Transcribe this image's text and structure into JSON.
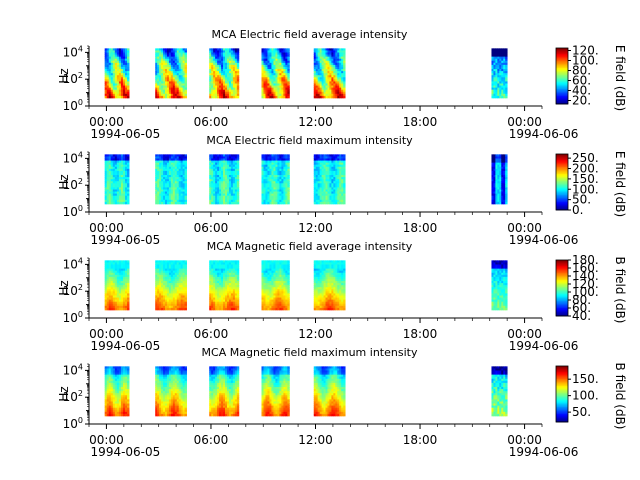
{
  "chart_data": [
    {
      "type": "heatmap",
      "title": "MCA  Electric field average intensity",
      "ylabel": "Hz",
      "y_scale": "log",
      "ylim": [
        1,
        30000
      ],
      "y_ticks": [
        {
          "v": 1,
          "base": "10",
          "exp": "0"
        },
        {
          "v": 100,
          "base": "10",
          "exp": "2"
        },
        {
          "v": 10000,
          "base": "10",
          "exp": "4"
        }
      ],
      "xlim_hours": [
        -1,
        25
      ],
      "x_ticks": [
        {
          "h": 0,
          "label": "00:00",
          "date": "1994-06-05"
        },
        {
          "h": 6,
          "label": "06:00",
          "date": ""
        },
        {
          "h": 12,
          "label": "12:00",
          "date": ""
        },
        {
          "h": 18,
          "label": "18:00",
          "date": ""
        },
        {
          "h": 24,
          "label": "00:00",
          "date": "1994-06-06"
        }
      ],
      "colorbar": {
        "label": "E field (dB)",
        "min": 13,
        "max": 125,
        "ticks": [
          "20.",
          "40.",
          "60.",
          "80.",
          "100.",
          "120."
        ],
        "tick_values": [
          20,
          40,
          60,
          80,
          100,
          120
        ]
      },
      "segments_hours": [
        [
          -0.1,
          1.3
        ],
        [
          2.8,
          4.6
        ],
        [
          5.9,
          7.6
        ],
        [
          8.9,
          10.5
        ],
        [
          11.9,
          13.7
        ],
        [
          22.1,
          23.0
        ]
      ],
      "freq_range_hz": [
        4,
        20000
      ],
      "pattern": "avgE"
    },
    {
      "type": "heatmap",
      "title": "MCA  Electric field maximum intensity",
      "ylabel": "Hz",
      "y_scale": "log",
      "ylim": [
        1,
        30000
      ],
      "y_ticks": [
        {
          "v": 1,
          "base": "10",
          "exp": "0"
        },
        {
          "v": 100,
          "base": "10",
          "exp": "2"
        },
        {
          "v": 10000,
          "base": "10",
          "exp": "4"
        }
      ],
      "xlim_hours": [
        -1,
        25
      ],
      "x_ticks": [
        {
          "h": 0,
          "label": "00:00",
          "date": "1994-06-05"
        },
        {
          "h": 6,
          "label": "06:00",
          "date": ""
        },
        {
          "h": 12,
          "label": "12:00",
          "date": ""
        },
        {
          "h": 18,
          "label": "18:00",
          "date": ""
        },
        {
          "h": 24,
          "label": "00:00",
          "date": "1994-06-06"
        }
      ],
      "colorbar": {
        "label": "E field (dB)",
        "min": 0,
        "max": 270,
        "ticks": [
          "0.",
          "50.",
          "100.",
          "150.",
          "200.",
          "250."
        ],
        "tick_values": [
          0,
          50,
          100,
          150,
          200,
          250
        ]
      },
      "segments_hours": [
        [
          -0.1,
          1.3
        ],
        [
          2.8,
          4.6
        ],
        [
          5.9,
          7.6
        ],
        [
          8.9,
          10.5
        ],
        [
          11.9,
          13.7
        ],
        [
          22.1,
          23.0
        ]
      ],
      "freq_range_hz": [
        4,
        20000
      ],
      "pattern": "maxE"
    },
    {
      "type": "heatmap",
      "title": "MCA  Magnetic field average intensity",
      "ylabel": "Hz",
      "y_scale": "log",
      "ylim": [
        1,
        30000
      ],
      "y_ticks": [
        {
          "v": 1,
          "base": "10",
          "exp": "0"
        },
        {
          "v": 100,
          "base": "10",
          "exp": "2"
        },
        {
          "v": 10000,
          "base": "10",
          "exp": "4"
        }
      ],
      "xlim_hours": [
        -1,
        25
      ],
      "x_ticks": [
        {
          "h": 0,
          "label": "00:00",
          "date": "1994-06-05"
        },
        {
          "h": 6,
          "label": "06:00",
          "date": ""
        },
        {
          "h": 12,
          "label": "12:00",
          "date": ""
        },
        {
          "h": 18,
          "label": "18:00",
          "date": ""
        },
        {
          "h": 24,
          "label": "00:00",
          "date": "1994-06-06"
        }
      ],
      "colorbar": {
        "label": "B field (dB)",
        "min": 40,
        "max": 180,
        "ticks": [
          "40.",
          "60.",
          "80.",
          "100.",
          "120.",
          "140.",
          "160.",
          "180."
        ],
        "tick_values": [
          40,
          60,
          80,
          100,
          120,
          140,
          160,
          180
        ]
      },
      "segments_hours": [
        [
          -0.1,
          1.3
        ],
        [
          2.8,
          4.6
        ],
        [
          5.9,
          7.6
        ],
        [
          8.9,
          10.5
        ],
        [
          11.9,
          13.7
        ],
        [
          22.1,
          23.0
        ]
      ],
      "freq_range_hz": [
        4,
        20000
      ],
      "pattern": "avgB"
    },
    {
      "type": "heatmap",
      "title": "MCA  Magnetic field maximum intensity",
      "ylabel": "Hz",
      "y_scale": "log",
      "ylim": [
        1,
        30000
      ],
      "y_ticks": [
        {
          "v": 1,
          "base": "10",
          "exp": "0"
        },
        {
          "v": 100,
          "base": "10",
          "exp": "2"
        },
        {
          "v": 10000,
          "base": "10",
          "exp": "4"
        }
      ],
      "xlim_hours": [
        -1,
        25
      ],
      "x_ticks": [
        {
          "h": 0,
          "label": "00:00",
          "date": "1994-06-05"
        },
        {
          "h": 6,
          "label": "06:00",
          "date": ""
        },
        {
          "h": 12,
          "label": "12:00",
          "date": ""
        },
        {
          "h": 18,
          "label": "18:00",
          "date": ""
        },
        {
          "h": 24,
          "label": "00:00",
          "date": "1994-06-06"
        }
      ],
      "colorbar": {
        "label": "B field (dB)",
        "min": 20,
        "max": 190,
        "ticks": [
          "50.",
          "100.",
          "150."
        ],
        "tick_values": [
          50,
          100,
          150
        ]
      },
      "segments_hours": [
        [
          -0.1,
          1.3
        ],
        [
          2.8,
          4.6
        ],
        [
          5.9,
          7.6
        ],
        [
          8.9,
          10.5
        ],
        [
          11.9,
          13.7
        ],
        [
          22.1,
          23.0
        ]
      ],
      "freq_range_hz": [
        4,
        20000
      ],
      "pattern": "maxB"
    }
  ]
}
